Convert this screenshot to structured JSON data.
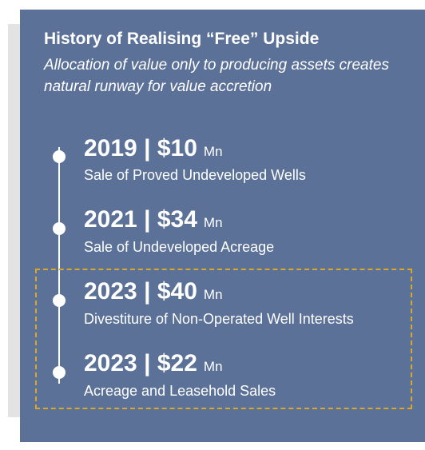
{
  "header": {
    "title": "History of Realising “Free” Upside",
    "subtitle": "Allocation of value only to producing assets creates natural runway for value accretion"
  },
  "timeline": {
    "entries": [
      {
        "year": "2019",
        "amount": "$10",
        "unit": "Mn",
        "description": "Sale of Proved Undeveloped Wells"
      },
      {
        "year": "2021",
        "amount": "$34",
        "unit": "Mn",
        "description": "Sale of Undeveloped Acreage"
      },
      {
        "year": "2023",
        "amount": "$40",
        "unit": "Mn",
        "description": "Divestiture of Non-Operated Well Interests"
      },
      {
        "year": "2023",
        "amount": "$22",
        "unit": "Mn",
        "description": "Acreage and Leasehold Sales"
      }
    ],
    "separator": "|"
  },
  "colors": {
    "panel_background": "#5b7198",
    "text": "#ffffff",
    "highlight_border": "#d9a829",
    "backdrop": "#e3e3e3"
  }
}
